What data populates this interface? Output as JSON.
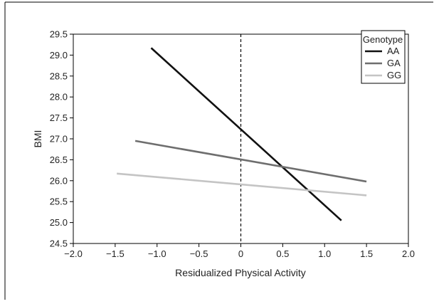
{
  "chart_data": {
    "type": "line",
    "title": "",
    "xlabel": "Residualized Physical Activity",
    "ylabel": "BMI",
    "xlim": [
      -2.0,
      2.0
    ],
    "ylim": [
      24.5,
      29.5
    ],
    "x_ticks": [
      -2.0,
      -1.5,
      -1.0,
      -0.5,
      0,
      0.5,
      1.0,
      1.5,
      2.0
    ],
    "x_tick_labels": [
      "−2.0",
      "−1.5",
      "−1.0",
      "−0.5",
      "0",
      "0.5",
      "1.0",
      "1.5",
      "2.0"
    ],
    "y_ticks": [
      24.5,
      25.0,
      25.5,
      26.0,
      26.5,
      27.0,
      27.5,
      28.0,
      28.5,
      29.0,
      29.5
    ],
    "y_tick_labels": [
      "24.5",
      "25.0",
      "25.5",
      "26.0",
      "26.5",
      "27.0",
      "27.5",
      "28.0",
      "28.5",
      "29.0",
      "29.5"
    ],
    "grid": false,
    "reference_line": {
      "x": 0,
      "style": "dashed",
      "color": "#000000"
    },
    "legend": {
      "title": "Genotype",
      "placement": "top-right"
    },
    "series": [
      {
        "name": "AA",
        "color": "#111111",
        "x": [
          -1.07,
          1.2
        ],
        "y": [
          29.17,
          25.05
        ]
      },
      {
        "name": "GA",
        "color": "#6e6e6e",
        "x": [
          -1.26,
          1.5
        ],
        "y": [
          26.95,
          25.98
        ]
      },
      {
        "name": "GG",
        "color": "#c4c4c4",
        "x": [
          -1.48,
          1.5
        ],
        "y": [
          26.17,
          25.65
        ]
      }
    ]
  }
}
